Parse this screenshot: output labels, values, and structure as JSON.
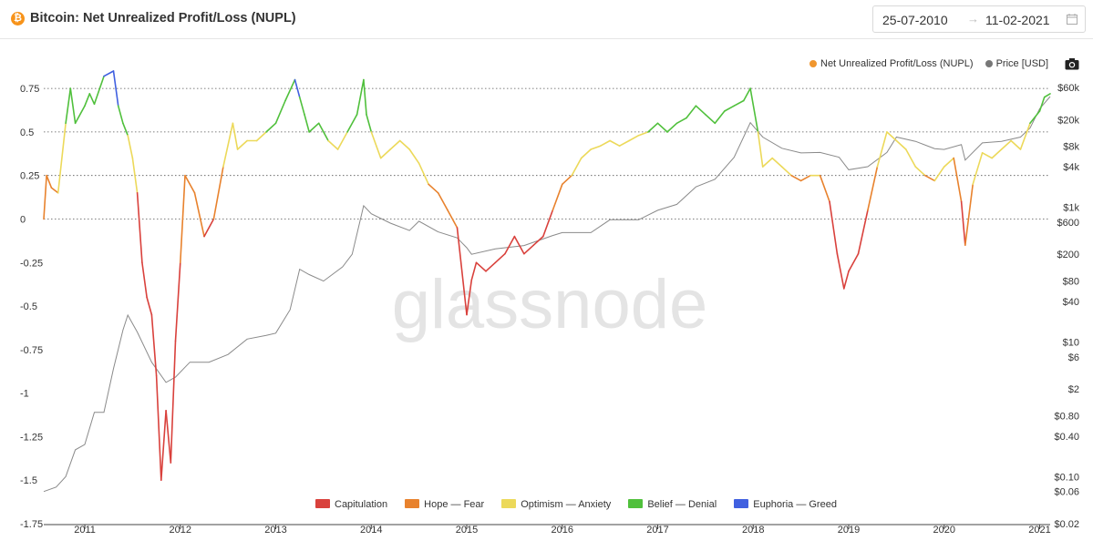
{
  "header": {
    "coin_symbol": "₿",
    "title": "Bitcoin: Net Unrealized Profit/Loss (NUPL)",
    "date_start": "25-07-2010",
    "date_arrow": "→",
    "date_end": "11-02-2021"
  },
  "watermark": "glassnode",
  "colors": {
    "capitulation": "#d9413c",
    "hope_fear": "#e8822d",
    "optimism_anxiety": "#ecd95a",
    "belief_denial": "#50c03c",
    "euphoria_greed": "#4060e0",
    "price": "#8a8a8a",
    "nupl_legend": "#f0962e",
    "zone_lines": "#555555"
  },
  "chart_data": {
    "type": "line",
    "title": "Bitcoin: Net Unrealized Profit/Loss (NUPL)",
    "xlabel": "",
    "ylabel": "",
    "x_range": [
      "2010-07-25",
      "2021-02-11"
    ],
    "x_ticks": [
      "2011",
      "2012",
      "2013",
      "2014",
      "2015",
      "2016",
      "2017",
      "2018",
      "2019",
      "2020",
      "2021"
    ],
    "y_left": {
      "range": [
        -1.75,
        0.85
      ],
      "ticks": [
        0.75,
        0.5,
        0.25,
        0,
        -0.25,
        -0.5,
        -0.75,
        -1,
        -1.25,
        -1.5,
        -1.75
      ],
      "tick_labels": [
        "0.75",
        "0.5",
        "0.25",
        "0",
        "-0.25",
        "-0.5",
        "-0.75",
        "-1",
        "-1.25",
        "-1.5",
        "-1.75"
      ],
      "dotted_lines": [
        0.75,
        0.5,
        0.25,
        0
      ]
    },
    "y_right": {
      "scale": "log",
      "range": [
        0.02,
        60000
      ],
      "ticks": [
        60000,
        20000,
        8000,
        4000,
        1000,
        600,
        200,
        80,
        40,
        10,
        6,
        2,
        0.8,
        0.4,
        0.1,
        0.06,
        0.02
      ],
      "tick_labels": [
        "$60k",
        "$20k",
        "$8k",
        "$4k",
        "$1k",
        "$600",
        "$200",
        "$80",
        "$40",
        "$10",
        "$6",
        "$2",
        "$0.80",
        "$0.40",
        "$0.10",
        "$0.06",
        "$0.02"
      ]
    },
    "legend_top": [
      "Net Unrealized Profit/Loss (NUPL)",
      "Price [USD]"
    ],
    "legend_bottom": [
      "Capitulation",
      "Hope — Fear",
      "Optimism — Anxiety",
      "Belief — Denial",
      "Euphoria — Greed"
    ],
    "series": [
      {
        "name": "Net Unrealized Profit/Loss (NUPL)",
        "axis": "left",
        "x": [
          2010.57,
          2010.6,
          2010.65,
          2010.72,
          2010.8,
          2010.85,
          2010.9,
          2011.0,
          2011.05,
          2011.1,
          2011.2,
          2011.3,
          2011.35,
          2011.4,
          2011.45,
          2011.5,
          2011.55,
          2011.6,
          2011.65,
          2011.7,
          2011.75,
          2011.8,
          2011.85,
          2011.9,
          2011.95,
          2012.0,
          2012.05,
          2012.15,
          2012.25,
          2012.35,
          2012.45,
          2012.55,
          2012.6,
          2012.7,
          2012.8,
          2012.9,
          2013.0,
          2013.1,
          2013.2,
          2013.25,
          2013.3,
          2013.35,
          2013.45,
          2013.55,
          2013.65,
          2013.75,
          2013.85,
          2013.92,
          2013.95,
          2014.0,
          2014.1,
          2014.2,
          2014.3,
          2014.4,
          2014.5,
          2014.6,
          2014.7,
          2014.8,
          2014.9,
          2015.0,
          2015.05,
          2015.1,
          2015.2,
          2015.3,
          2015.4,
          2015.5,
          2015.6,
          2015.7,
          2015.8,
          2015.9,
          2016.0,
          2016.1,
          2016.2,
          2016.3,
          2016.4,
          2016.5,
          2016.6,
          2016.7,
          2016.8,
          2016.9,
          2017.0,
          2017.1,
          2017.2,
          2017.3,
          2017.4,
          2017.5,
          2017.6,
          2017.7,
          2017.8,
          2017.9,
          2017.97,
          2018.05,
          2018.1,
          2018.2,
          2018.3,
          2018.4,
          2018.5,
          2018.6,
          2018.7,
          2018.8,
          2018.88,
          2018.95,
          2019.0,
          2019.1,
          2019.2,
          2019.3,
          2019.4,
          2019.5,
          2019.6,
          2019.7,
          2019.8,
          2019.9,
          2020.0,
          2020.1,
          2020.18,
          2020.22,
          2020.3,
          2020.4,
          2020.5,
          2020.6,
          2020.7,
          2020.8,
          2020.9,
          2021.0,
          2021.05,
          2021.11
        ],
        "y": [
          0.0,
          0.25,
          0.18,
          0.15,
          0.55,
          0.75,
          0.55,
          0.65,
          0.72,
          0.66,
          0.82,
          0.85,
          0.65,
          0.55,
          0.48,
          0.35,
          0.15,
          -0.25,
          -0.45,
          -0.55,
          -0.9,
          -1.5,
          -1.1,
          -1.4,
          -0.7,
          -0.25,
          0.25,
          0.15,
          -0.1,
          0.0,
          0.3,
          0.55,
          0.4,
          0.45,
          0.45,
          0.5,
          0.55,
          0.68,
          0.8,
          0.7,
          0.6,
          0.5,
          0.55,
          0.45,
          0.4,
          0.5,
          0.6,
          0.8,
          0.6,
          0.5,
          0.35,
          0.4,
          0.45,
          0.4,
          0.32,
          0.2,
          0.15,
          0.05,
          -0.05,
          -0.55,
          -0.35,
          -0.25,
          -0.3,
          -0.25,
          -0.2,
          -0.1,
          -0.2,
          -0.15,
          -0.1,
          0.05,
          0.2,
          0.25,
          0.35,
          0.4,
          0.42,
          0.45,
          0.42,
          0.45,
          0.48,
          0.5,
          0.55,
          0.5,
          0.55,
          0.58,
          0.65,
          0.6,
          0.55,
          0.62,
          0.65,
          0.68,
          0.75,
          0.5,
          0.3,
          0.35,
          0.3,
          0.25,
          0.22,
          0.25,
          0.25,
          0.1,
          -0.2,
          -0.4,
          -0.3,
          -0.2,
          0.05,
          0.3,
          0.5,
          0.45,
          0.4,
          0.3,
          0.25,
          0.22,
          0.3,
          0.35,
          0.1,
          -0.15,
          0.2,
          0.38,
          0.35,
          0.4,
          0.45,
          0.4,
          0.55,
          0.62,
          0.7,
          0.72
        ]
      },
      {
        "name": "Price [USD]",
        "axis": "right",
        "x": [
          2010.57,
          2010.7,
          2010.8,
          2010.9,
          2011.0,
          2011.1,
          2011.2,
          2011.3,
          2011.4,
          2011.45,
          2011.55,
          2011.7,
          2011.85,
          2011.95,
          2012.1,
          2012.3,
          2012.5,
          2012.7,
          2012.9,
          2013.0,
          2013.15,
          2013.25,
          2013.35,
          2013.5,
          2013.7,
          2013.8,
          2013.92,
          2014.0,
          2014.2,
          2014.4,
          2014.5,
          2014.7,
          2014.9,
          2015.0,
          2015.05,
          2015.3,
          2015.6,
          2015.9,
          2016.0,
          2016.3,
          2016.5,
          2016.8,
          2017.0,
          2017.2,
          2017.4,
          2017.6,
          2017.8,
          2017.97,
          2018.1,
          2018.3,
          2018.5,
          2018.7,
          2018.9,
          2019.0,
          2019.2,
          2019.4,
          2019.5,
          2019.7,
          2019.9,
          2020.0,
          2020.18,
          2020.22,
          2020.4,
          2020.6,
          2020.8,
          2020.9,
          2021.0,
          2021.11
        ],
        "y": [
          0.06,
          0.07,
          0.1,
          0.25,
          0.3,
          0.9,
          0.9,
          4,
          15,
          25,
          14,
          5,
          2.5,
          3,
          5,
          5,
          6.5,
          11,
          12.5,
          13.5,
          30,
          120,
          100,
          80,
          130,
          200,
          1050,
          800,
          580,
          450,
          620,
          430,
          350,
          250,
          200,
          240,
          270,
          380,
          420,
          420,
          650,
          650,
          900,
          1100,
          2000,
          2600,
          5500,
          18000,
          11000,
          7500,
          6400,
          6500,
          5500,
          3600,
          4000,
          6500,
          11000,
          9500,
          7400,
          7200,
          8500,
          5000,
          9000,
          9500,
          11000,
          15000,
          29000,
          44000
        ]
      }
    ]
  }
}
